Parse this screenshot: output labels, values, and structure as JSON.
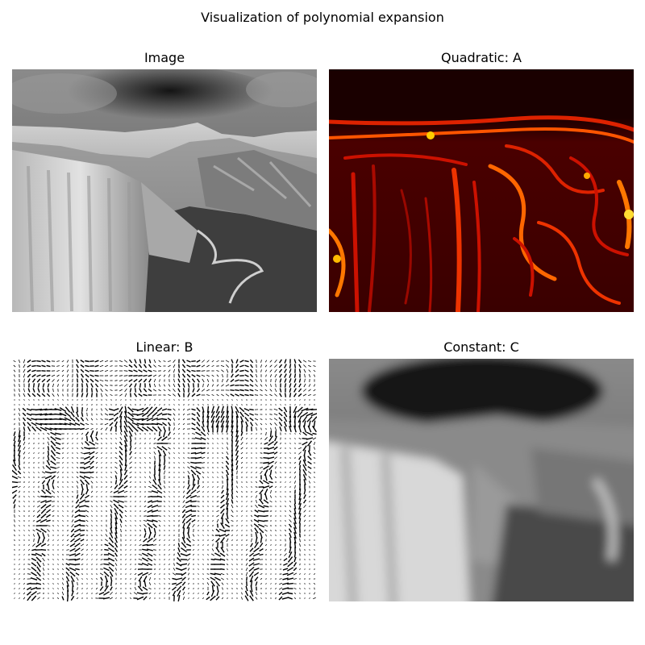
{
  "figure": {
    "title": "Visualization of polynomial expansion",
    "panels": [
      {
        "title": "Image",
        "content": "mountain-landscape-grayscale"
      },
      {
        "title": "Quadratic: A",
        "content": "heatmap-hot-colormap"
      },
      {
        "title": "Linear: B",
        "content": "vector-field-quiver"
      },
      {
        "title": "Constant: C",
        "content": "blurred-mountain-grayscale"
      }
    ]
  },
  "colors": {
    "background": "#ffffff",
    "heat_dark": "#000000",
    "heat_mid": "#cc1100",
    "heat_bright": "#ffdd00"
  }
}
